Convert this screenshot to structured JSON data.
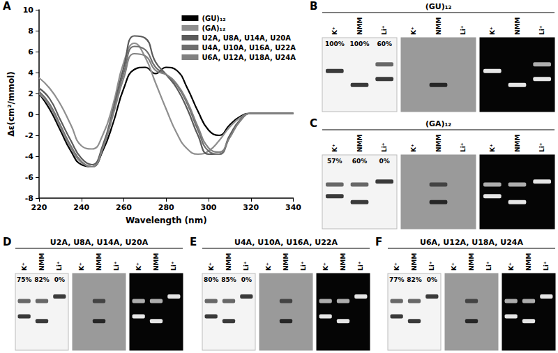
{
  "chart_data": {
    "type": "line",
    "panel": "A",
    "xlabel": "Wavelength (nm)",
    "ylabel": "Δε(cm²/mmol)",
    "x": [
      220,
      225,
      230,
      235,
      240,
      245,
      250,
      255,
      260,
      265,
      270,
      275,
      280,
      285,
      290,
      295,
      300,
      305,
      310,
      315,
      320,
      325,
      330,
      335,
      340
    ],
    "xlim": [
      220,
      340
    ],
    "xticks": [
      220,
      240,
      260,
      280,
      300,
      320,
      340
    ],
    "ylim": [
      -8,
      10
    ],
    "yticks": [
      -8,
      -6,
      -4,
      -2,
      0,
      2,
      4,
      6,
      8,
      10
    ],
    "grid": false,
    "legend": "upper right",
    "series": [
      {
        "name": "(GU)₁₂",
        "color": "#000000",
        "values": [
          2.0,
          0.5,
          -1.5,
          -3.5,
          -4.8,
          -5.0,
          -3.5,
          -0.8,
          2.5,
          4.3,
          4.5,
          3.9,
          4.5,
          4.2,
          2.5,
          0.3,
          -1.5,
          -2.0,
          -1.0,
          -0.2,
          0.1,
          0.1,
          0.1,
          0.1,
          0.1
        ]
      },
      {
        "name": "(GA)₁₂",
        "color": "#8f8f8f",
        "values": [
          3.5,
          2.5,
          1.0,
          -1.0,
          -3.0,
          -3.3,
          -2.0,
          1.0,
          5.0,
          6.8,
          5.5,
          3.0,
          0.5,
          -1.8,
          -3.3,
          -3.8,
          -3.5,
          -2.5,
          -1.2,
          -0.3,
          0.1,
          0.1,
          0.1,
          0.1,
          0.1
        ]
      },
      {
        "name": "U2A, U8A, U14A, U20A",
        "color": "#5a5a5a",
        "values": [
          2.5,
          1.5,
          -0.5,
          -2.5,
          -4.2,
          -4.8,
          -3.0,
          0.5,
          4.5,
          7.5,
          7.3,
          5.0,
          3.8,
          2.5,
          0.5,
          -2.0,
          -3.8,
          -3.8,
          -2.0,
          -0.5,
          0.1,
          0.1,
          0.1,
          0.1,
          0.1
        ]
      },
      {
        "name": "U4A, U10A, U16A, U22A",
        "color": "#6e6e6e",
        "values": [
          2.2,
          1.0,
          -1.0,
          -3.0,
          -4.5,
          -5.0,
          -3.2,
          0.3,
          4.0,
          6.5,
          6.2,
          4.5,
          3.8,
          2.8,
          1.0,
          -1.5,
          -3.5,
          -3.8,
          -2.2,
          -0.6,
          0.1,
          0.1,
          0.1,
          0.1,
          0.1
        ]
      },
      {
        "name": "U6A, U12A, U18A, U24A",
        "color": "#818181",
        "values": [
          2.0,
          0.8,
          -1.2,
          -3.2,
          -4.6,
          -5.0,
          -3.3,
          0.0,
          3.5,
          5.8,
          5.6,
          4.2,
          3.8,
          2.9,
          1.2,
          -1.2,
          -3.2,
          -3.6,
          -2.2,
          -0.6,
          0.1,
          0.1,
          0.1,
          0.1,
          0.1
        ]
      }
    ]
  },
  "gels": [
    {
      "panel": "B",
      "title": "(GU)₁₂",
      "lanes": [
        "K⁺",
        "NMM",
        "Li⁺"
      ],
      "values": [
        100,
        100,
        60
      ],
      "value_labels": [
        "100%",
        "100%",
        "60%"
      ]
    },
    {
      "panel": "C",
      "title": "(GA)₁₂",
      "lanes": [
        "K⁺",
        "NMM",
        "Li⁺"
      ],
      "values": [
        57,
        60,
        0
      ],
      "value_labels": [
        "57%",
        "60%",
        "0%"
      ]
    },
    {
      "panel": "D",
      "title": "U2A, U8A, U14A, U20A",
      "lanes": [
        "K⁺",
        "NMM",
        "Li⁺"
      ],
      "values": [
        75,
        82,
        0
      ],
      "value_labels": [
        "75%",
        "82%",
        "0%"
      ]
    },
    {
      "panel": "E",
      "title": "U4A, U10A, U16A, U22A",
      "lanes": [
        "K⁺",
        "NMM",
        "Li⁺"
      ],
      "values": [
        80,
        85,
        0
      ],
      "value_labels": [
        "80%",
        "85%",
        "0%"
      ]
    },
    {
      "panel": "F",
      "title": "U6A, U12A, U18A, U24A",
      "lanes": [
        "K⁺",
        "NMM",
        "Li⁺"
      ],
      "values": [
        77,
        82,
        0
      ],
      "value_labels": [
        "77%",
        "82%",
        "0%"
      ]
    }
  ]
}
